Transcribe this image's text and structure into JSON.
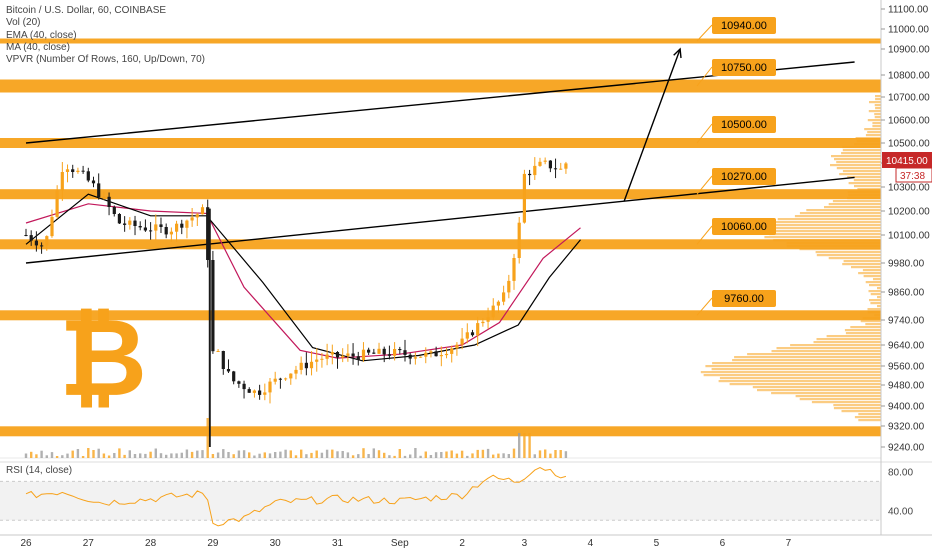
{
  "header": {
    "symbol_line": "Bitcoin / U.S. Dollar, 60, COINBASE",
    "indicators": [
      "Vol (20)",
      "EMA (40, close)",
      "MA (40, close)",
      "VPVR (Number Of Rows, 160, Up/Down, 70)"
    ],
    "rsi_label": "RSI (14, close)"
  },
  "price_scale": {
    "last_price": "10415.00",
    "countdown": "37:38",
    "rsi_ticks": [
      "80.00",
      "40.00"
    ]
  },
  "colors": {
    "accent_orange": "#f7a21b",
    "zone_orange": "#f7a21b",
    "ema_red": "#c2185b",
    "ma_black": "#000000",
    "last_price_red": "#c62828"
  },
  "chart_data": {
    "type": "candlestick",
    "symbol": "Bitcoin / U.S. Dollar",
    "interval": "60",
    "exchange": "COINBASE",
    "y_ticks": [
      11100,
      11000,
      10900,
      10800,
      10700,
      10600,
      10500,
      10400,
      10300,
      10200,
      10100,
      9980,
      9860,
      9740,
      9640,
      9560,
      9480,
      9400,
      9320,
      9240
    ],
    "x_ticks": [
      "26",
      "27",
      "28",
      "29",
      "30",
      "31",
      "Sep",
      "2",
      "3",
      "4",
      "5",
      "6",
      "7"
    ],
    "key_levels": [
      10940,
      10750,
      10500,
      10270,
      10060,
      9760
    ],
    "key_level_labels": [
      "10940.00",
      "10750.00",
      "10500.00",
      "10270.00",
      "10060.00",
      "9760.00"
    ],
    "unlabeled_zones": [
      9300
    ],
    "price_path": [
      {
        "t": 0.0,
        "p": 10100
      },
      {
        "t": 0.3,
        "p": 10050
      },
      {
        "t": 0.6,
        "p": 10400
      },
      {
        "t": 0.9,
        "p": 10350
      },
      {
        "t": 1.1,
        "p": 10300
      },
      {
        "t": 1.5,
        "p": 10150
      },
      {
        "t": 1.9,
        "p": 10130
      },
      {
        "t": 2.3,
        "p": 10120
      },
      {
        "t": 2.7,
        "p": 10180
      },
      {
        "t": 2.9,
        "p": 10210
      },
      {
        "t": 2.95,
        "p": 9600
      },
      {
        "t": 3.05,
        "p": 9620
      },
      {
        "t": 3.3,
        "p": 9500
      },
      {
        "t": 3.7,
        "p": 9450
      },
      {
        "t": 4.2,
        "p": 9530
      },
      {
        "t": 4.7,
        "p": 9590
      },
      {
        "t": 5.3,
        "p": 9600
      },
      {
        "t": 5.8,
        "p": 9610
      },
      {
        "t": 6.5,
        "p": 9600
      },
      {
        "t": 7.0,
        "p": 9650
      },
      {
        "t": 7.4,
        "p": 9760
      },
      {
        "t": 7.7,
        "p": 9850
      },
      {
        "t": 7.9,
        "p": 10100
      },
      {
        "t": 8.0,
        "p": 10350
      },
      {
        "t": 8.3,
        "p": 10400
      },
      {
        "t": 8.6,
        "p": 10370
      },
      {
        "t": 8.7,
        "p": 10415
      }
    ],
    "ema_path": [
      {
        "t": 0.0,
        "p": 10150
      },
      {
        "t": 1.0,
        "p": 10230
      },
      {
        "t": 2.0,
        "p": 10200
      },
      {
        "t": 2.9,
        "p": 10190
      },
      {
        "t": 3.5,
        "p": 9880
      },
      {
        "t": 4.4,
        "p": 9620
      },
      {
        "t": 5.0,
        "p": 9590
      },
      {
        "t": 6.0,
        "p": 9605
      },
      {
        "t": 7.0,
        "p": 9640
      },
      {
        "t": 7.6,
        "p": 9730
      },
      {
        "t": 8.3,
        "p": 10000
      },
      {
        "t": 8.9,
        "p": 10130
      }
    ],
    "ma_path": [
      {
        "t": 0.0,
        "p": 10060
      },
      {
        "t": 1.0,
        "p": 10270
      },
      {
        "t": 2.0,
        "p": 10180
      },
      {
        "t": 2.9,
        "p": 10180
      },
      {
        "t": 3.8,
        "p": 9900
      },
      {
        "t": 4.6,
        "p": 9630
      },
      {
        "t": 5.4,
        "p": 9580
      },
      {
        "t": 6.3,
        "p": 9600
      },
      {
        "t": 7.2,
        "p": 9640
      },
      {
        "t": 7.9,
        "p": 9720
      },
      {
        "t": 8.4,
        "p": 9920
      },
      {
        "t": 8.9,
        "p": 10080
      }
    ],
    "upper_trendline": [
      {
        "t": 0.0,
        "p": 10500
      },
      {
        "t": 13.3,
        "p": 10850
      }
    ],
    "lower_trendline": [
      {
        "t": 0.0,
        "p": 9980
      },
      {
        "t": 13.3,
        "p": 10340
      }
    ],
    "projection_arrow": [
      {
        "t": 9.6,
        "p": 10240
      },
      {
        "t": 10.5,
        "p": 10900
      }
    ],
    "rsi": {
      "label": "RSI (14, close)",
      "ticks": [
        80,
        40
      ],
      "band": [
        30,
        70
      ],
      "points": [
        {
          "t": 0.0,
          "v": 55
        },
        {
          "t": 0.6,
          "v": 60
        },
        {
          "t": 1.2,
          "v": 48
        },
        {
          "t": 2.0,
          "v": 52
        },
        {
          "t": 2.9,
          "v": 58
        },
        {
          "t": 3.0,
          "v": 27
        },
        {
          "t": 3.5,
          "v": 32
        },
        {
          "t": 4.0,
          "v": 48
        },
        {
          "t": 5.0,
          "v": 52
        },
        {
          "t": 6.0,
          "v": 50
        },
        {
          "t": 7.0,
          "v": 56
        },
        {
          "t": 7.4,
          "v": 74
        },
        {
          "t": 7.9,
          "v": 70
        },
        {
          "t": 8.2,
          "v": 86
        },
        {
          "t": 8.5,
          "v": 80
        },
        {
          "t": 8.7,
          "v": 70
        }
      ]
    }
  }
}
